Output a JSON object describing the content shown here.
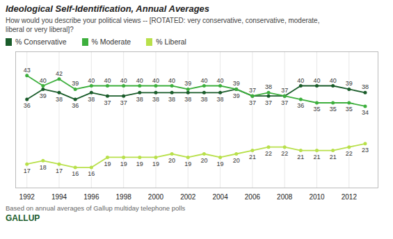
{
  "chart_data": {
    "type": "line",
    "title": "Ideological Self-Identification, Annual Averages",
    "subtitle": "How would you describe your political views -- [ROTATED: very conservative, conservative, moderate,\nliberal or very liberal]?",
    "footnote": "Based on annual averages of Gallup multiday telephone polls",
    "source": "GALLUP",
    "x": [
      1992,
      1993,
      1994,
      1995,
      1996,
      1997,
      1998,
      1999,
      2000,
      2001,
      2002,
      2003,
      2004,
      2005,
      2006,
      2007,
      2008,
      2009,
      2010,
      2011,
      2012,
      2013
    ],
    "series": [
      {
        "name": "% Conservative",
        "color": "#1a5c2a",
        "marker": "circle",
        "values": [
          36,
          39,
          38,
          36,
          38,
          37,
          37,
          38,
          38,
          38,
          38,
          38,
          38,
          39,
          37,
          37,
          37,
          40,
          40,
          40,
          39,
          38
        ]
      },
      {
        "name": "% Moderate",
        "color": "#3daf3d",
        "marker": "circle",
        "values": [
          43,
          40,
          42,
          39,
          40,
          40,
          40,
          40,
          40,
          40,
          39,
          40,
          40,
          39,
          37,
          38,
          37,
          36,
          35,
          35,
          35,
          34
        ]
      },
      {
        "name": "% Liberal",
        "color": "#b8e04a",
        "marker": "circle",
        "values": [
          17,
          18,
          17,
          16,
          16,
          19,
          19,
          19,
          19,
          20,
          19,
          20,
          19,
          20,
          21,
          22,
          22,
          21,
          21,
          21,
          22,
          23
        ]
      }
    ],
    "xlim": [
      1991.3,
      2013.8
    ],
    "xticks": [
      1992,
      1994,
      1996,
      1998,
      2000,
      2002,
      2004,
      2006,
      2008,
      2010,
      2012
    ],
    "ylim": [
      10,
      50
    ],
    "tick_labels": "x",
    "grid": true,
    "data_labels": true,
    "legend": "top"
  }
}
